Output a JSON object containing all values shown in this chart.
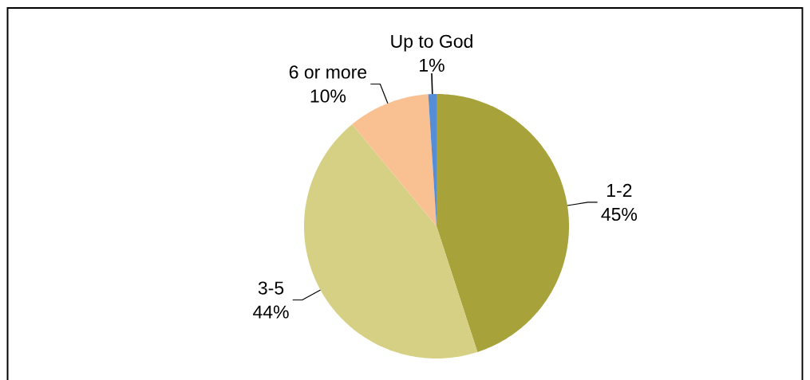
{
  "chart_data": {
    "type": "pie",
    "categories": [
      "1-2",
      "3-5",
      "6 or more",
      "Up to God"
    ],
    "values": [
      45,
      44,
      10,
      1
    ],
    "value_labels": [
      "45%",
      "44%",
      "10%",
      "1%"
    ],
    "colors": [
      "#a8a23a",
      "#d6d084",
      "#f9c092",
      "#558ed5"
    ]
  }
}
